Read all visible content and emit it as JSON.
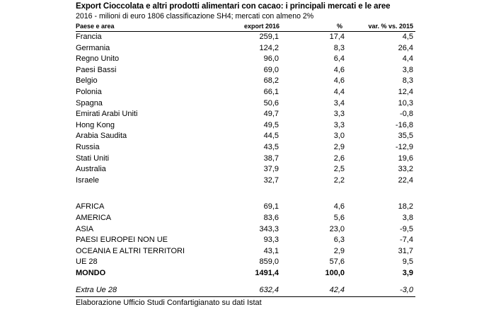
{
  "title": "Export Cioccolata e altri prodotti alimentari con cacao: i principali mercati e le aree",
  "subtitle": "2016 - milioni di euro  1806 classificazione SH4; mercati con almeno 2%",
  "columns": [
    "Paese e area",
    "export 2016",
    "%",
    "var. % vs. 2015"
  ],
  "countries": [
    [
      "Francia",
      "259,1",
      "17,4",
      "4,5"
    ],
    [
      "Germania",
      "124,2",
      "8,3",
      "26,4"
    ],
    [
      "Regno Unito",
      "96,0",
      "6,4",
      "4,4"
    ],
    [
      "Paesi Bassi",
      "69,0",
      "4,6",
      "3,8"
    ],
    [
      "Belgio",
      "68,2",
      "4,6",
      "8,3"
    ],
    [
      "Polonia",
      "66,1",
      "4,4",
      "12,4"
    ],
    [
      "Spagna",
      "50,6",
      "3,4",
      "10,3"
    ],
    [
      "Emirati Arabi Uniti",
      "49,7",
      "3,3",
      "-0,8"
    ],
    [
      "Hong Kong",
      "49,5",
      "3,3",
      "-16,8"
    ],
    [
      "Arabia Saudita",
      "44,5",
      "3,0",
      "35,5"
    ],
    [
      "Russia",
      "43,5",
      "2,9",
      "-12,9"
    ],
    [
      "Stati Uniti",
      "38,7",
      "2,6",
      "19,6"
    ],
    [
      "Australia",
      "37,9",
      "2,5",
      "33,2"
    ],
    [
      "Israele",
      "32,7",
      "2,2",
      "22,4"
    ]
  ],
  "areas": [
    [
      "AFRICA",
      "69,1",
      "4,6",
      "18,2"
    ],
    [
      "AMERICA",
      "83,6",
      "5,6",
      "3,8"
    ],
    [
      "ASIA",
      "343,3",
      "23,0",
      "-9,5"
    ],
    [
      "PAESI EUROPEI NON UE",
      "93,3",
      "6,3",
      "-7,4"
    ],
    [
      "OCEANIA E ALTRI TERRITORI",
      "43,1",
      "2,9",
      "31,7"
    ],
    [
      "UE 28",
      "859,0",
      "57,6",
      "9,5"
    ]
  ],
  "total": [
    "MONDO",
    "1491,4",
    "100,0",
    "3,9"
  ],
  "extra": [
    "Extra Ue 28",
    "632,4",
    "42,4",
    "-3,0"
  ],
  "footer": "Elaborazione Ufficio Studi Confartigianato su dati Istat"
}
